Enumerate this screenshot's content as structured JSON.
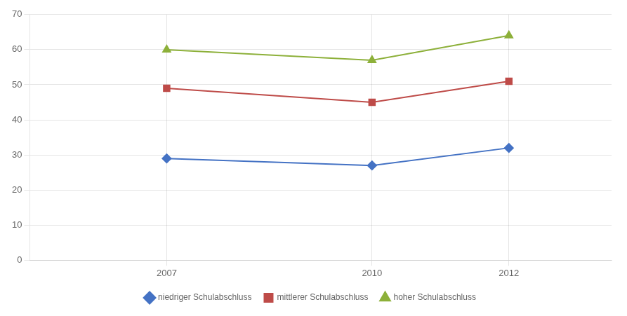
{
  "chart_data": {
    "type": "line",
    "x": [
      2007,
      2010,
      2012
    ],
    "series": [
      {
        "name": "niedriger Schulabschluss",
        "color": "#4472C4",
        "marker": "diamond",
        "values": [
          29,
          27,
          32
        ]
      },
      {
        "name": "mittlerer Schulabschluss",
        "color": "#BE4B48",
        "marker": "square",
        "values": [
          49,
          45,
          51
        ]
      },
      {
        "name": "hoher Schulabschluss",
        "color": "#8DB03A",
        "marker": "triangle",
        "values": [
          60,
          57,
          64
        ]
      }
    ],
    "xlim": [
      2005.0,
      2013.5
    ],
    "xticks": [
      2007,
      2010,
      2012
    ],
    "ylim": [
      0,
      70
    ],
    "yticks": [
      0,
      10,
      20,
      30,
      40,
      50,
      60,
      70
    ],
    "grid": true,
    "legend": "bottom"
  }
}
